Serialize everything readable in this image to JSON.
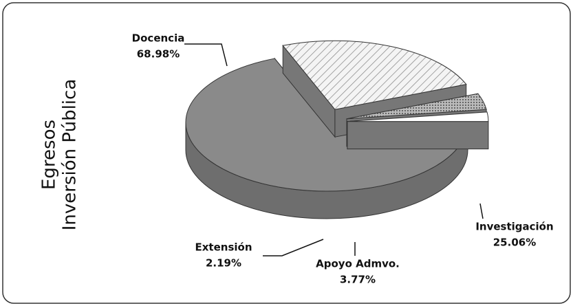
{
  "chart_data": {
    "type": "pie",
    "title": [
      "Egresos",
      "Inversión Pública"
    ],
    "categories": [
      "Docencia",
      "Investigación",
      "Apoyo Admvo.",
      "Extensión"
    ],
    "values": [
      68.98,
      25.06,
      3.77,
      2.19
    ],
    "value_labels": [
      "68.98%",
      "25.06%",
      "3.77%",
      "2.19%"
    ],
    "colors": [
      "#8a8a8a",
      "#e8e8e8",
      "#b0b0b0",
      "#ffffff"
    ]
  }
}
